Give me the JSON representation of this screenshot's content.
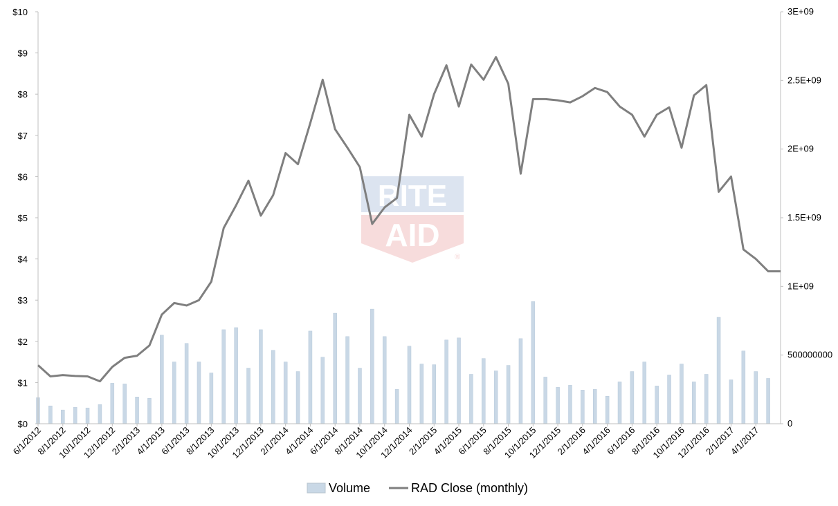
{
  "chart_data": {
    "type": "bar+line",
    "title": "",
    "xlabel": "",
    "ylabel_left": "",
    "ylabel_right": "",
    "x": [
      "6/1/2012",
      "7/1/2012",
      "8/1/2012",
      "9/1/2012",
      "10/1/2012",
      "11/1/2012",
      "12/1/2012",
      "1/1/2013",
      "2/1/2013",
      "3/1/2013",
      "4/1/2013",
      "5/1/2013",
      "6/1/2013",
      "7/1/2013",
      "8/1/2013",
      "9/1/2013",
      "10/1/2013",
      "11/1/2013",
      "12/1/2013",
      "1/1/2014",
      "2/1/2014",
      "3/1/2014",
      "4/1/2014",
      "5/1/2014",
      "6/1/2014",
      "7/1/2014",
      "8/1/2014",
      "9/1/2014",
      "10/1/2014",
      "11/1/2014",
      "12/1/2014",
      "1/1/2015",
      "2/1/2015",
      "3/1/2015",
      "4/1/2015",
      "5/1/2015",
      "6/1/2015",
      "7/1/2015",
      "8/1/2015",
      "9/1/2015",
      "10/1/2015",
      "11/1/2015",
      "12/1/2015",
      "1/1/2016",
      "2/1/2016",
      "3/1/2016",
      "4/1/2016",
      "5/1/2016",
      "6/1/2016",
      "7/1/2016",
      "8/1/2016",
      "9/1/2016",
      "10/1/2016",
      "11/1/2016",
      "12/1/2016",
      "1/1/2017",
      "2/1/2017",
      "3/1/2017",
      "4/1/2017",
      "5/1/2017",
      "6/1/2017"
    ],
    "x_tick_labels": [
      "6/1/2012",
      "8/1/2012",
      "10/1/2012",
      "12/1/2012",
      "2/1/2013",
      "4/1/2013",
      "6/1/2013",
      "8/1/2013",
      "10/1/2013",
      "12/1/2013",
      "2/1/2014",
      "4/1/2014",
      "6/1/2014",
      "8/1/2014",
      "10/1/2014",
      "12/1/2014",
      "2/1/2015",
      "4/1/2015",
      "6/1/2015",
      "8/1/2015",
      "10/1/2015",
      "12/1/2015",
      "2/1/2016",
      "4/1/2016",
      "6/1/2016",
      "8/1/2016",
      "10/1/2016",
      "12/1/2016",
      "2/1/2017",
      "4/1/2017"
    ],
    "left_axis": {
      "ylim": [
        0,
        10
      ],
      "ticks": [
        "$0",
        "$1",
        "$2",
        "$3",
        "$4",
        "$5",
        "$6",
        "$7",
        "$8",
        "$9",
        "$10"
      ]
    },
    "right_axis": {
      "ylim": [
        0,
        3000000000
      ],
      "ticks": [
        "0",
        "500000000",
        "1E+09",
        "1.5E+09",
        "2E+09",
        "2.5E+09",
        "3E+09"
      ]
    },
    "grid": false,
    "legend_placement": "bottom-center",
    "series": [
      {
        "name": "Volume",
        "type": "bar",
        "axis": "right",
        "color": "#c9d8e6",
        "values": [
          190000000,
          130000000,
          100000000,
          120000000,
          115000000,
          140000000,
          295000000,
          290000000,
          195000000,
          185000000,
          645000000,
          450000000,
          585000000,
          450000000,
          370000000,
          685000000,
          700000000,
          405000000,
          685000000,
          535000000,
          450000000,
          380000000,
          675000000,
          485000000,
          805000000,
          635000000,
          405000000,
          835000000,
          635000000,
          250000000,
          565000000,
          435000000,
          430000000,
          610000000,
          625000000,
          360000000,
          475000000,
          385000000,
          425000000,
          620000000,
          890000000,
          340000000,
          265000000,
          280000000,
          245000000,
          250000000,
          200000000,
          305000000,
          380000000,
          450000000,
          275000000,
          355000000,
          435000000,
          305000000,
          360000000,
          775000000,
          320000000,
          530000000,
          380000000,
          330000000,
          0
        ]
      },
      {
        "name": "RAD Close (monthly)",
        "type": "line",
        "axis": "left",
        "color": "#7f7f7f",
        "values": [
          1.42,
          1.15,
          1.18,
          1.16,
          1.15,
          1.03,
          1.38,
          1.6,
          1.65,
          1.9,
          2.65,
          2.93,
          2.87,
          3.0,
          3.45,
          4.75,
          5.3,
          5.9,
          5.05,
          5.55,
          6.57,
          6.3,
          7.3,
          8.35,
          7.15,
          6.7,
          6.23,
          4.85,
          5.25,
          5.48,
          7.5,
          6.97,
          8.0,
          8.7,
          7.7,
          8.72,
          8.35,
          8.9,
          8.25,
          6.07,
          7.88,
          7.88,
          7.85,
          7.8,
          7.95,
          8.15,
          8.05,
          7.7,
          7.5,
          6.97,
          7.5,
          7.68,
          6.7,
          7.97,
          8.22,
          5.63,
          6.0,
          4.23,
          4.0,
          3.7,
          3.7
        ]
      }
    ]
  },
  "legend": {
    "volume_label": "Volume",
    "close_label": "RAD Close (monthly)"
  },
  "watermark": {
    "line1": "RITE",
    "line2": "AID",
    "reg": "®",
    "blue": "#2f5fa8",
    "red": "#d32f2f"
  }
}
